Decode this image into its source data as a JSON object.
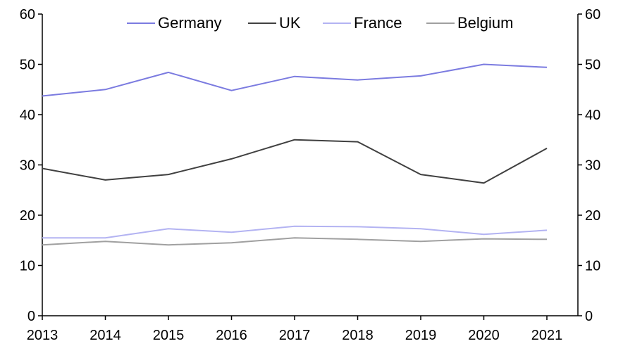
{
  "chart_data": {
    "type": "line",
    "title": "",
    "xlabel": "",
    "ylabel": "",
    "x": [
      "2013",
      "2014",
      "2015",
      "2016",
      "2017",
      "2018",
      "2019",
      "2020",
      "2021"
    ],
    "ylim": [
      0,
      60
    ],
    "yticks": [
      "0",
      "10",
      "20",
      "30",
      "40",
      "50",
      "60"
    ],
    "secondary_ylim": [
      0,
      60
    ],
    "grid": false,
    "legend_position": "top",
    "series": [
      {
        "name": "Germany",
        "color": "#7b7be0",
        "values": [
          43.7,
          45.0,
          48.4,
          44.8,
          47.6,
          46.9,
          47.7,
          50.0,
          49.4
        ]
      },
      {
        "name": "UK",
        "color": "#404040",
        "values": [
          29.3,
          27.0,
          28.1,
          31.2,
          35.0,
          34.6,
          28.1,
          26.4,
          33.3
        ]
      },
      {
        "name": "France",
        "color": "#b3b3f2",
        "values": [
          15.5,
          15.5,
          17.3,
          16.6,
          17.8,
          17.7,
          17.3,
          16.2,
          17.0
        ]
      },
      {
        "name": "Belgium",
        "color": "#a0a0a0",
        "values": [
          14.1,
          14.8,
          14.1,
          14.5,
          15.5,
          15.2,
          14.8,
          15.3,
          15.2
        ]
      }
    ]
  }
}
